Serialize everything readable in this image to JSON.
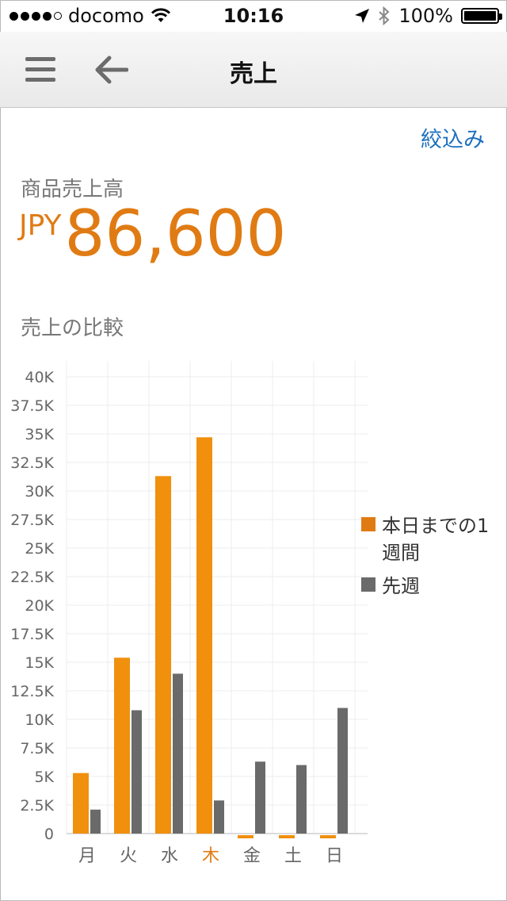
{
  "status_bar": {
    "carrier": "docomo",
    "time": "10:16",
    "battery": "100%"
  },
  "nav": {
    "title": "売上"
  },
  "filter_label": "絞込み",
  "sales": {
    "label": "商品売上高",
    "currency": "JPY",
    "amount": "86,600"
  },
  "compare_label": "売上の比較",
  "colors": {
    "this_week": "#f0900d",
    "last_week": "#6a6a6a",
    "accent": "#e07b14",
    "link": "#1d6fbf"
  },
  "chart_data": {
    "type": "bar",
    "categories": [
      "月",
      "火",
      "水",
      "木",
      "金",
      "土",
      "日"
    ],
    "highlight_category": "木",
    "yticks": [
      "0",
      "2.5K",
      "5K",
      "7.5K",
      "10K",
      "12.5K",
      "15K",
      "17.5K",
      "20K",
      "22.5K",
      "25K",
      "27.5K",
      "30K",
      "32.5K",
      "35K",
      "37.5K",
      "40K"
    ],
    "ylim": [
      0,
      40000
    ],
    "grid": true,
    "legend_position": "right",
    "series": [
      {
        "name": "本日までの1週間",
        "values": [
          5300,
          15400,
          31300,
          34700,
          0,
          0,
          0
        ]
      },
      {
        "name": "先週",
        "values": [
          2100,
          10800,
          14000,
          2900,
          6300,
          6000,
          11000
        ]
      }
    ]
  }
}
